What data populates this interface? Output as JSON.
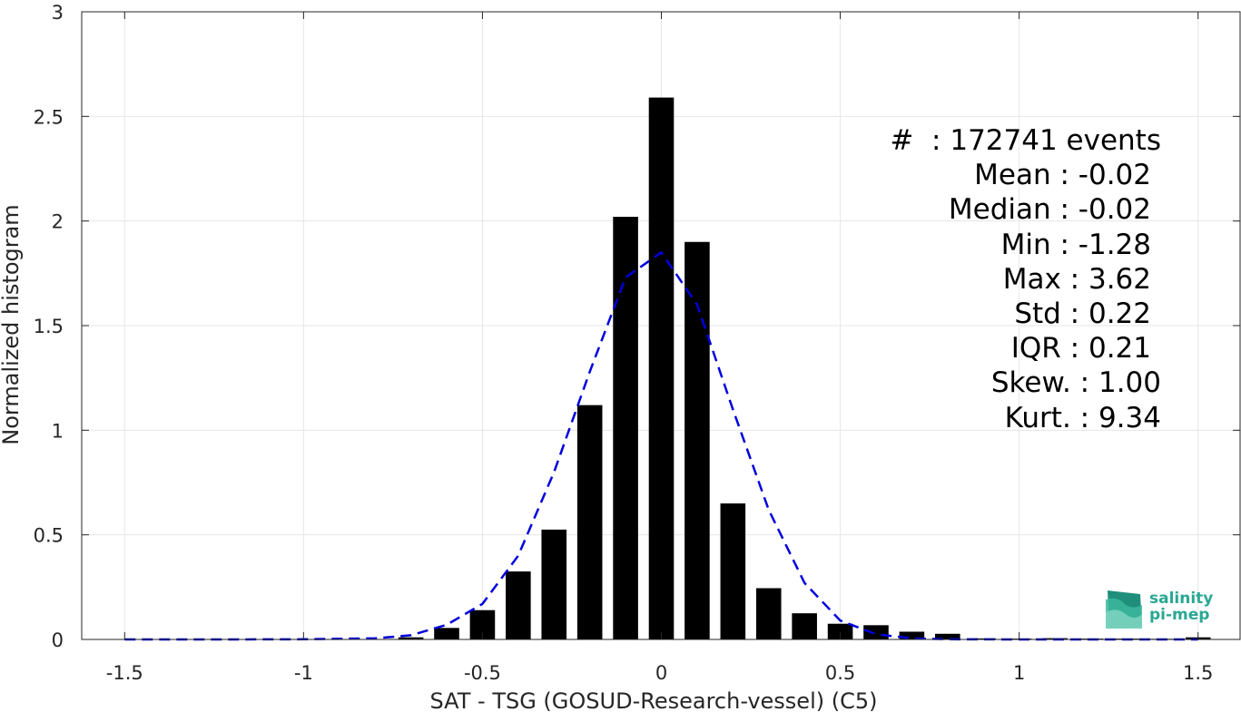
{
  "chart_data": {
    "type": "bar",
    "xlabel": "SAT - TSG (GOSUD-Research-vessel) (C5)",
    "ylabel": "Normalized histogram",
    "xlim": [
      -1.62,
      1.62
    ],
    "ylim": [
      0,
      3
    ],
    "xticks": [
      "-1.5",
      "-1",
      "-0.5",
      "0",
      "0.5",
      "1",
      "1.5"
    ],
    "xtick_values": [
      -1.5,
      -1,
      -0.5,
      0,
      0.5,
      1,
      1.5
    ],
    "yticks": [
      "0",
      "0.5",
      "1",
      "1.5",
      "2",
      "2.5",
      "3"
    ],
    "ytick_values": [
      0,
      0.5,
      1,
      1.5,
      2,
      2.5,
      3
    ],
    "grid": true,
    "bar_width": 0.07,
    "bars": {
      "x": [
        -0.8,
        -0.7,
        -0.6,
        -0.5,
        -0.4,
        -0.3,
        -0.2,
        -0.1,
        0,
        0.1,
        0.2,
        0.3,
        0.4,
        0.5,
        0.6,
        0.7,
        0.8,
        0.9,
        1.0,
        1.1,
        1.2,
        1.3,
        1.4,
        1.5
      ],
      "values": [
        0.002,
        0.01,
        0.055,
        0.14,
        0.325,
        0.525,
        1.12,
        2.02,
        2.59,
        1.9,
        0.65,
        0.245,
        0.125,
        0.075,
        0.068,
        0.037,
        0.027,
        0.005,
        0.004,
        0.006,
        0.004,
        0.004,
        0.003,
        0.01
      ],
      "color": "#000000"
    },
    "fit_curve": {
      "style": "dashed",
      "color": "#0000dd",
      "x": [
        -1.5,
        -1.2,
        -1.0,
        -0.8,
        -0.7,
        -0.6,
        -0.5,
        -0.4,
        -0.3,
        -0.2,
        -0.1,
        0,
        0.1,
        0.2,
        0.3,
        0.4,
        0.5,
        0.6,
        0.7,
        0.8,
        1.0,
        1.2,
        1.5
      ],
      "y": [
        0,
        0,
        0.001,
        0.005,
        0.02,
        0.07,
        0.17,
        0.4,
        0.8,
        1.28,
        1.73,
        1.85,
        1.6,
        1.1,
        0.62,
        0.27,
        0.09,
        0.025,
        0.005,
        0.001,
        0,
        0,
        0
      ]
    }
  },
  "stats": {
    "count": "#  : 172741 events",
    "mean": "Mean : -0.02",
    "median": "Median : -0.02",
    "min": "Min : -1.28",
    "max": "Max : 3.62",
    "std": "Std : 0.22",
    "iqr": "IQR : 0.21",
    "skew": "Skew. : 1.00",
    "kurt": "Kurt. : 9.34"
  },
  "logo": {
    "line1": "salinity",
    "line2": "pi-mep"
  }
}
